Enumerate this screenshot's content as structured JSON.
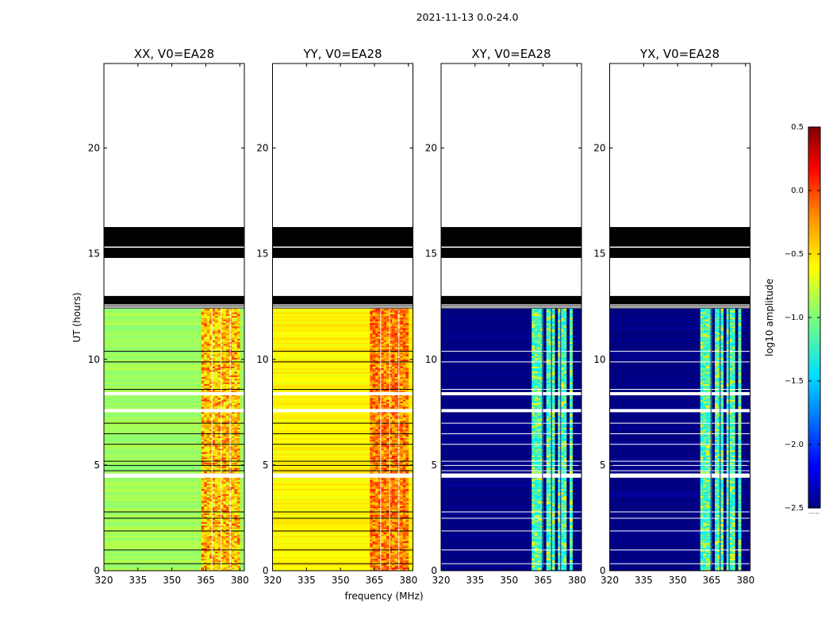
{
  "figure": {
    "suptitle": "2021-11-13 0.0-24.0",
    "xlabel": "frequency (MHz)",
    "ylabel": "UT (hours)",
    "colorbar_label": "log$_{10}$ amplitude",
    "colorbar_label_display": "log10 amplitude",
    "colorbar_footer": "......"
  },
  "colors": {
    "dark_blue": "#00008f",
    "green": "#9cf36f",
    "yellow": "#f4f24a",
    "orange": "#ff9b00",
    "red": "#f00000",
    "cyan": "#2cd9ff"
  },
  "chart_data": [
    {
      "type": "heatmap",
      "title": "XX, V0=EA28",
      "x_ticks": [
        320,
        335,
        350,
        365,
        380
      ],
      "y_ticks": [
        0,
        5,
        10,
        15,
        20
      ],
      "xlim": [
        320,
        382
      ],
      "ylim": [
        0,
        24
      ],
      "background_level": -0.9,
      "band_range_mhz": [
        363,
        380
      ],
      "band_level": -0.5,
      "peak_level": -0.1
    },
    {
      "type": "heatmap",
      "title": "YY, V0=EA28",
      "x_ticks": [
        320,
        335,
        350,
        365,
        380
      ],
      "y_ticks": [
        0,
        5,
        10,
        15,
        20
      ],
      "xlim": [
        320,
        382
      ],
      "ylim": [
        0,
        24
      ],
      "background_level": -0.6,
      "band_range_mhz": [
        363,
        380
      ],
      "band_level": -0.3,
      "peak_level": 0.0
    },
    {
      "type": "heatmap",
      "title": "XY, V0=EA28",
      "x_ticks": [
        320,
        335,
        350,
        365,
        380
      ],
      "y_ticks": [
        0,
        5,
        10,
        15,
        20
      ],
      "xlim": [
        320,
        382
      ],
      "ylim": [
        0,
        24
      ],
      "background_level": -2.5,
      "band_range_mhz": [
        360,
        378
      ],
      "band_level": -1.2,
      "peak_level": -0.7
    },
    {
      "type": "heatmap",
      "title": "YX, V0=EA28",
      "x_ticks": [
        320,
        335,
        350,
        365,
        380
      ],
      "y_ticks": [
        0,
        5,
        10,
        15,
        20
      ],
      "xlim": [
        320,
        382
      ],
      "ylim": [
        0,
        24
      ],
      "background_level": -2.5,
      "band_range_mhz": [
        360,
        378
      ],
      "band_level": -1.2,
      "peak_level": -0.7
    }
  ],
  "colorbar": {
    "ticks": [
      0.5,
      0.0,
      -0.5,
      -1.0,
      -1.5,
      -2.0,
      -2.5
    ],
    "tick_labels": [
      "0.5",
      "0.0",
      "−0.5",
      "−1.0",
      "−1.5",
      "−2.0",
      "−2.5"
    ],
    "range": [
      -2.5,
      0.5
    ]
  },
  "flagged_time_ranges_hours": [
    [
      16.0,
      16.3
    ],
    [
      15.3,
      16.0
    ],
    [
      14.8,
      15.3
    ],
    [
      12.6,
      13.0
    ]
  ],
  "empty_time_range_hours": [
    16.3,
    24.0
  ],
  "empty_time_range_2_hours": [
    13.0,
    14.8
  ],
  "data_time_range_hours": [
    0.0,
    12.4
  ]
}
